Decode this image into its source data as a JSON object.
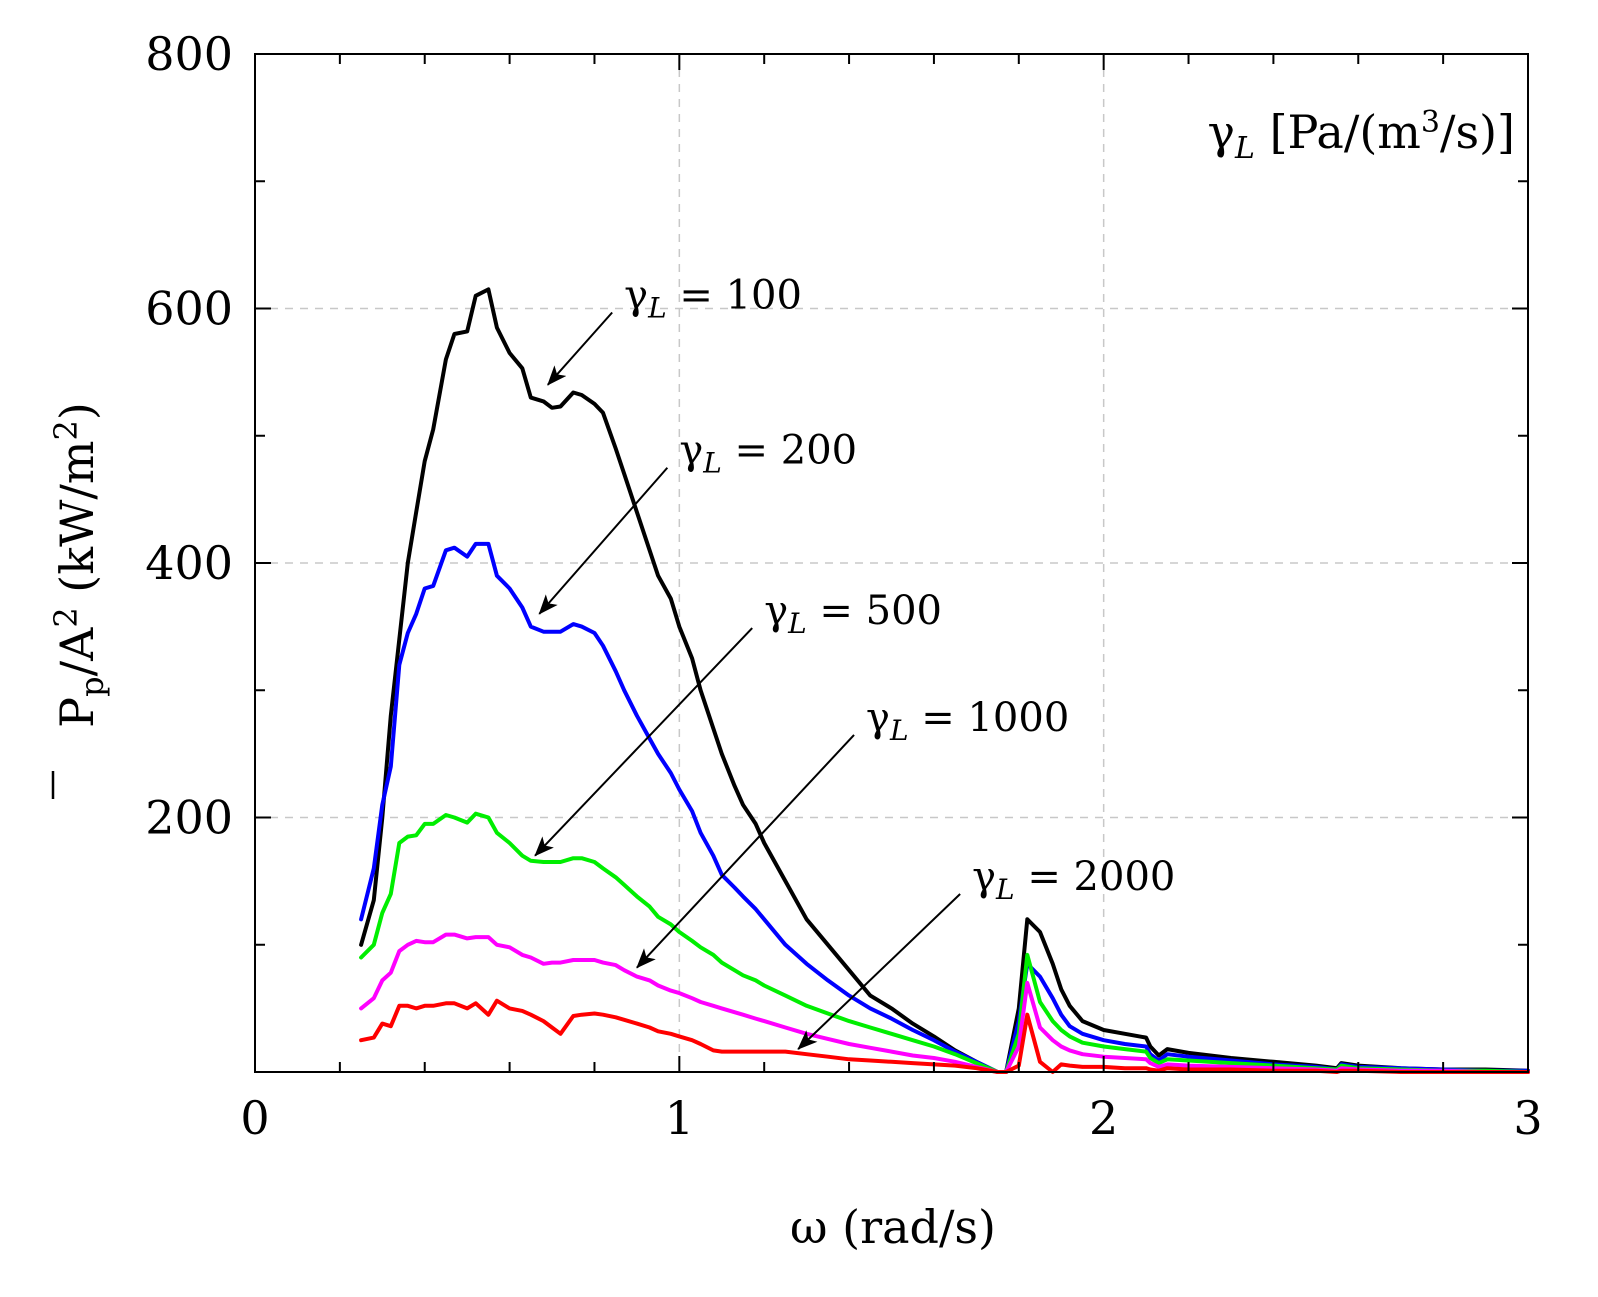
{
  "chart_data": {
    "type": "line",
    "xlabel": "ω (rad/s)",
    "ylabel_parts": [
      "P",
      "p",
      "/A",
      "2",
      " (kW/m",
      "2",
      ")"
    ],
    "xlim": [
      0,
      3
    ],
    "ylim": [
      0,
      800
    ],
    "xticks": [
      0,
      1,
      2,
      3
    ],
    "yticks": [
      0,
      200,
      400,
      600,
      800
    ],
    "ytick_labels": [
      "",
      "200",
      "400",
      "600",
      "800"
    ],
    "grid": true,
    "legend_title": {
      "symbol": "γ",
      "sub": "L",
      "text": " [Pa/(m",
      "sup": "3",
      "text2": "/s)]"
    },
    "series": [
      {
        "name": "γL = 100",
        "gamma": "100",
        "color": "#000000",
        "x": [
          0.25,
          0.28,
          0.3,
          0.32,
          0.34,
          0.36,
          0.38,
          0.4,
          0.42,
          0.45,
          0.47,
          0.5,
          0.52,
          0.55,
          0.57,
          0.6,
          0.63,
          0.65,
          0.68,
          0.7,
          0.72,
          0.75,
          0.77,
          0.8,
          0.82,
          0.85,
          0.87,
          0.9,
          0.93,
          0.95,
          0.98,
          1.0,
          1.03,
          1.05,
          1.08,
          1.1,
          1.13,
          1.15,
          1.18,
          1.2,
          1.25,
          1.3,
          1.35,
          1.4,
          1.45,
          1.5,
          1.55,
          1.6,
          1.65,
          1.7,
          1.75,
          1.77,
          1.8,
          1.82,
          1.85,
          1.88,
          1.9,
          1.92,
          1.95,
          2.0,
          2.05,
          2.1,
          2.11,
          2.13,
          2.15,
          2.2,
          2.3,
          2.4,
          2.5,
          2.55,
          2.56,
          2.6,
          2.7,
          2.8,
          2.9,
          3.0
        ],
        "y": [
          100,
          135,
          200,
          280,
          340,
          400,
          440,
          480,
          505,
          560,
          580,
          582,
          610,
          615,
          585,
          565,
          553,
          530,
          527,
          522,
          523,
          534,
          532,
          525,
          518,
          490,
          470,
          440,
          410,
          390,
          372,
          350,
          325,
          300,
          270,
          250,
          225,
          210,
          195,
          180,
          150,
          120,
          100,
          80,
          60,
          50,
          38,
          28,
          17,
          8,
          0,
          0,
          50,
          120,
          110,
          85,
          65,
          52,
          40,
          33,
          30,
          27,
          20,
          13,
          18,
          15,
          11,
          8,
          5,
          3,
          7,
          5,
          3,
          2,
          2,
          1
        ]
      },
      {
        "name": "γL = 200",
        "gamma": "200",
        "color": "#0000ff",
        "x": [
          0.25,
          0.28,
          0.3,
          0.32,
          0.34,
          0.36,
          0.38,
          0.4,
          0.42,
          0.45,
          0.47,
          0.5,
          0.52,
          0.55,
          0.57,
          0.6,
          0.63,
          0.65,
          0.68,
          0.7,
          0.72,
          0.75,
          0.77,
          0.8,
          0.82,
          0.85,
          0.87,
          0.9,
          0.93,
          0.95,
          0.98,
          1.0,
          1.03,
          1.05,
          1.08,
          1.1,
          1.13,
          1.15,
          1.18,
          1.2,
          1.25,
          1.3,
          1.35,
          1.4,
          1.45,
          1.5,
          1.55,
          1.6,
          1.65,
          1.7,
          1.75,
          1.77,
          1.8,
          1.82,
          1.85,
          1.88,
          1.9,
          1.92,
          1.95,
          2.0,
          2.05,
          2.1,
          2.11,
          2.13,
          2.15,
          2.2,
          2.3,
          2.4,
          2.5,
          2.55,
          2.56,
          2.6,
          2.7,
          2.8,
          2.9,
          3.0
        ],
        "y": [
          120,
          160,
          210,
          240,
          320,
          345,
          360,
          380,
          382,
          410,
          412,
          405,
          415,
          415,
          390,
          380,
          365,
          350,
          346,
          346,
          346,
          352,
          350,
          345,
          335,
          315,
          300,
          280,
          262,
          250,
          235,
          222,
          205,
          188,
          170,
          155,
          145,
          138,
          128,
          120,
          100,
          85,
          72,
          60,
          50,
          42,
          33,
          25,
          16,
          8,
          0,
          0,
          40,
          85,
          75,
          58,
          45,
          36,
          30,
          25,
          22,
          20,
          14,
          9,
          14,
          12,
          9,
          6,
          4,
          2,
          6,
          4,
          3,
          2,
          1,
          1
        ]
      },
      {
        "name": "γL = 500",
        "gamma": "500",
        "color": "#00ee00",
        "x": [
          0.25,
          0.28,
          0.3,
          0.32,
          0.34,
          0.36,
          0.38,
          0.4,
          0.42,
          0.45,
          0.47,
          0.5,
          0.52,
          0.55,
          0.57,
          0.6,
          0.63,
          0.65,
          0.68,
          0.7,
          0.72,
          0.75,
          0.77,
          0.8,
          0.82,
          0.85,
          0.87,
          0.9,
          0.93,
          0.95,
          0.98,
          1.0,
          1.03,
          1.05,
          1.08,
          1.1,
          1.13,
          1.15,
          1.18,
          1.2,
          1.25,
          1.3,
          1.35,
          1.4,
          1.45,
          1.5,
          1.55,
          1.6,
          1.65,
          1.7,
          1.75,
          1.77,
          1.8,
          1.82,
          1.85,
          1.88,
          1.9,
          1.92,
          1.95,
          2.0,
          2.05,
          2.1,
          2.11,
          2.13,
          2.15,
          2.2,
          2.3,
          2.4,
          2.5,
          2.55,
          2.56,
          2.6,
          2.7,
          2.8,
          2.9,
          3.0
        ],
        "y": [
          90,
          100,
          125,
          140,
          180,
          185,
          186,
          195,
          195,
          202,
          200,
          196,
          203,
          200,
          188,
          180,
          170,
          166,
          165,
          165,
          165,
          168,
          168,
          165,
          160,
          153,
          147,
          138,
          130,
          122,
          116,
          110,
          103,
          98,
          92,
          86,
          80,
          76,
          72,
          68,
          60,
          52,
          46,
          40,
          35,
          30,
          25,
          20,
          14,
          7,
          0,
          0,
          30,
          92,
          55,
          40,
          33,
          28,
          23,
          20,
          18,
          16,
          11,
          7,
          10,
          9,
          7,
          5,
          3,
          2,
          5,
          3,
          2,
          1,
          1,
          0
        ]
      },
      {
        "name": "γL = 1000",
        "gamma": "1000",
        "color": "#ff00ff",
        "x": [
          0.25,
          0.28,
          0.3,
          0.32,
          0.34,
          0.36,
          0.38,
          0.4,
          0.42,
          0.45,
          0.47,
          0.5,
          0.52,
          0.55,
          0.57,
          0.6,
          0.63,
          0.65,
          0.68,
          0.7,
          0.72,
          0.75,
          0.77,
          0.8,
          0.82,
          0.85,
          0.87,
          0.9,
          0.93,
          0.95,
          0.98,
          1.0,
          1.03,
          1.05,
          1.08,
          1.1,
          1.13,
          1.15,
          1.18,
          1.2,
          1.25,
          1.3,
          1.35,
          1.4,
          1.45,
          1.5,
          1.55,
          1.6,
          1.65,
          1.7,
          1.75,
          1.77,
          1.8,
          1.82,
          1.85,
          1.88,
          1.9,
          1.92,
          1.95,
          2.0,
          2.05,
          2.1,
          2.11,
          2.13,
          2.15,
          2.2,
          2.3,
          2.4,
          2.5,
          2.55,
          2.56,
          2.6,
          2.7,
          2.8,
          2.9,
          3.0
        ],
        "y": [
          50,
          58,
          72,
          78,
          95,
          100,
          103,
          102,
          102,
          108,
          108,
          105,
          106,
          106,
          100,
          98,
          92,
          90,
          85,
          86,
          86,
          88,
          88,
          88,
          86,
          84,
          80,
          75,
          72,
          68,
          64,
          62,
          58,
          55,
          52,
          50,
          47,
          45,
          42,
          40,
          35,
          30,
          26,
          22,
          19,
          16,
          13,
          11,
          8,
          4,
          0,
          0,
          20,
          70,
          35,
          25,
          20,
          17,
          14,
          12,
          11,
          10,
          7,
          4,
          6,
          5,
          4,
          3,
          2,
          1,
          3,
          2,
          1,
          1,
          0,
          0
        ]
      },
      {
        "name": "γL = 2000",
        "gamma": "2000",
        "color": "#ff0000",
        "x": [
          0.25,
          0.28,
          0.3,
          0.32,
          0.34,
          0.36,
          0.38,
          0.4,
          0.42,
          0.45,
          0.47,
          0.5,
          0.52,
          0.55,
          0.57,
          0.6,
          0.63,
          0.65,
          0.68,
          0.7,
          0.72,
          0.75,
          0.77,
          0.8,
          0.82,
          0.85,
          0.87,
          0.9,
          0.93,
          0.95,
          0.98,
          1.0,
          1.03,
          1.05,
          1.08,
          1.1,
          1.13,
          1.15,
          1.18,
          1.2,
          1.25,
          1.3,
          1.35,
          1.4,
          1.45,
          1.5,
          1.55,
          1.6,
          1.65,
          1.7,
          1.75,
          1.77,
          1.8,
          1.82,
          1.85,
          1.88,
          1.9,
          1.92,
          1.95,
          2.0,
          2.05,
          2.1,
          2.11,
          2.13,
          2.15,
          2.2,
          2.3,
          2.4,
          2.5,
          2.55,
          2.56,
          2.6,
          2.7,
          2.8,
          2.9,
          3.0
        ],
        "y": [
          25,
          27,
          38,
          36,
          52,
          52,
          50,
          52,
          52,
          54,
          54,
          50,
          54,
          45,
          56,
          50,
          48,
          45,
          40,
          35,
          30,
          44,
          45,
          46,
          45,
          43,
          41,
          38,
          35,
          32,
          30,
          28,
          25,
          22,
          17,
          16,
          16,
          16,
          16,
          16,
          16,
          14,
          12,
          10,
          9,
          8,
          7,
          6,
          5,
          3,
          0,
          0,
          5,
          45,
          8,
          0,
          6,
          5,
          4,
          4,
          3,
          3,
          2,
          1,
          3,
          2,
          2,
          1,
          1,
          0,
          1,
          1,
          0,
          0,
          0,
          0
        ]
      }
    ],
    "annotations": [
      {
        "text": "= 100",
        "series": 0,
        "target_x": 0.69,
        "target_y": 540,
        "label_x": 0.87,
        "label_y": 600
      },
      {
        "text": "= 200",
        "series": 1,
        "target_x": 0.67,
        "target_y": 360,
        "label_x": 1.0,
        "label_y": 478
      },
      {
        "text": "= 500",
        "series": 2,
        "target_x": 0.66,
        "target_y": 170,
        "label_x": 1.2,
        "label_y": 352
      },
      {
        "text": "= 1000",
        "series": 3,
        "target_x": 0.9,
        "target_y": 82,
        "label_x": 1.44,
        "label_y": 268
      },
      {
        "text": "= 2000",
        "series": 4,
        "target_x": 1.28,
        "target_y": 18,
        "label_x": 1.69,
        "label_y": 143
      }
    ]
  }
}
